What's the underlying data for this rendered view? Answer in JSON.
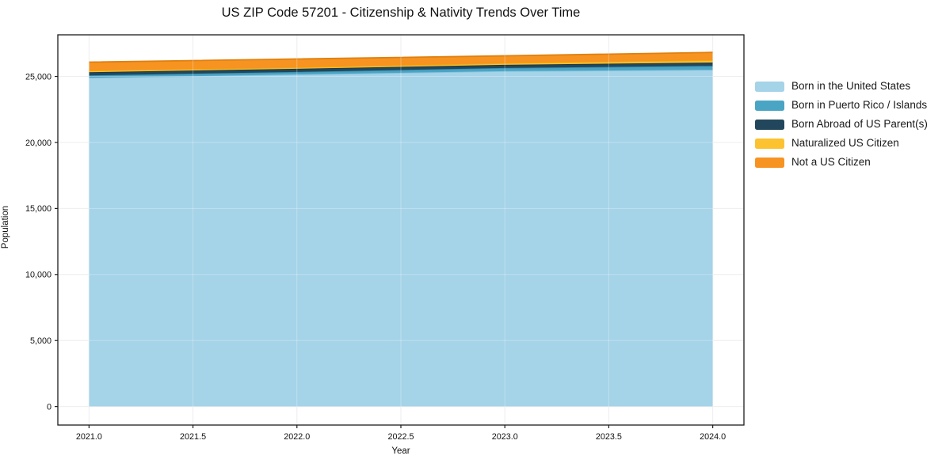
{
  "chart_data": {
    "type": "area",
    "stacked": true,
    "title": "US ZIP Code 57201 - Citizenship & Nativity Trends Over Time",
    "xlabel": "Year",
    "ylabel": "Population",
    "x": [
      2021,
      2022,
      2023,
      2024
    ],
    "series": [
      {
        "name": "Born in the United States",
        "color": "#a5d3e8",
        "edge_color": "#8cc4dd",
        "values": [
          24900,
          25150,
          25400,
          25500
        ]
      },
      {
        "name": "Born in Puerto Rico / Islands",
        "color": "#4aa5c5",
        "edge_color": "#3a90ae",
        "values": [
          180,
          190,
          240,
          300
        ]
      },
      {
        "name": "Born Abroad of US Parent(s)",
        "color": "#22475c",
        "edge_color": "#1a3748",
        "values": [
          240,
          240,
          240,
          250
        ]
      },
      {
        "name": "Naturalized US Citizen",
        "color": "#fdc22f",
        "edge_color": "#eead12",
        "values": [
          110,
          100,
          120,
          180
        ]
      },
      {
        "name": "Not a US Citizen",
        "color": "#f79321",
        "edge_color": "#e0800e",
        "values": [
          650,
          640,
          560,
          590
        ]
      }
    ],
    "xticks": [
      2021.0,
      2021.5,
      2022.0,
      2022.5,
      2023.0,
      2023.5,
      2024.0
    ],
    "xtick_labels": [
      "2021.0",
      "2021.5",
      "2022.0",
      "2022.5",
      "2023.0",
      "2023.5",
      "2024.0"
    ],
    "yticks": [
      0,
      5000,
      10000,
      15000,
      20000,
      25000
    ],
    "ytick_labels": [
      "0",
      "5,000",
      "10,000",
      "15,000",
      "20,000",
      "25,000"
    ],
    "xlim": [
      2020.85,
      2024.15
    ],
    "ylim": [
      -1400,
      28150
    ],
    "grid": true,
    "legend_position": "right",
    "colors": {
      "spine": "#1c1c1c",
      "gridline": "#e7e7e7",
      "tick_text": "#111111",
      "background": "#ffffff"
    }
  }
}
